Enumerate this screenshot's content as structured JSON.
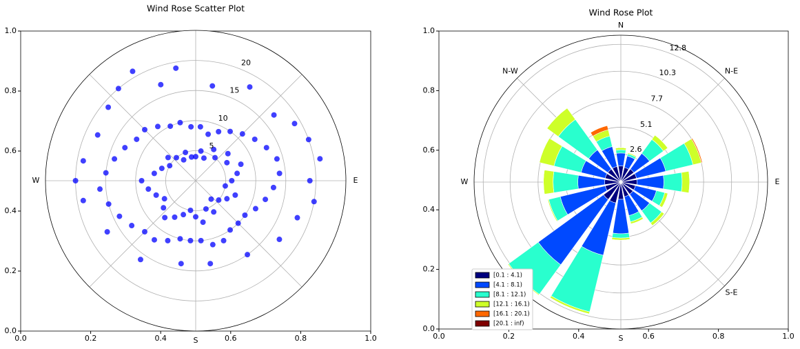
{
  "chart_data": [
    {
      "type": "polar_scatter",
      "title": "Wind Rose Scatter Plot",
      "color": "#0000ff",
      "directions": [
        null,
        null,
        "E",
        null,
        "S",
        null,
        "W",
        null
      ],
      "x": [
        5,
        15,
        25,
        35,
        45,
        55,
        65,
        75,
        85,
        95,
        105,
        115,
        125,
        135,
        145,
        155,
        165,
        175,
        185,
        195,
        205,
        215,
        225,
        235,
        245,
        255,
        265,
        275,
        285,
        295,
        305,
        315,
        325,
        335,
        345,
        355,
        0,
        10,
        20,
        30,
        40,
        50,
        60,
        70,
        80,
        90,
        100,
        110,
        120,
        130,
        140,
        150,
        160,
        170,
        180,
        190,
        200,
        210,
        220,
        230,
        240,
        250,
        260,
        270,
        280,
        290,
        300,
        310,
        320,
        330,
        340,
        350,
        340,
        350,
        10,
        30,
        50,
        60,
        70,
        80,
        90,
        100,
        110,
        125,
        145,
        170,
        190,
        215,
        240,
        260,
        270,
        280,
        295,
        310,
        320,
        330
      ],
      "values": [
        9,
        8,
        9,
        10,
        11,
        12,
        13,
        14,
        14,
        13,
        12,
        11,
        10,
        10,
        10,
        11,
        11,
        10,
        10,
        10,
        11,
        12,
        12,
        13,
        14,
        15,
        16,
        15,
        14,
        13,
        12,
        12,
        11,
        10,
        10,
        9,
        4,
        5,
        4,
        6,
        5,
        7,
        6,
        8,
        7,
        6,
        5,
        7,
        6,
        5,
        4,
        6,
        5,
        7,
        6,
        5,
        6,
        7,
        8,
        7,
        6,
        7,
        8,
        9,
        7,
        6,
        5,
        6,
        5,
        4,
        5,
        4,
        17,
        19,
        16,
        18,
        17,
        19,
        20,
        21,
        19,
        20,
        18,
        17,
        15,
        14,
        14,
        16,
        17,
        19,
        20,
        19,
        18,
        19,
        20,
        21
      ],
      "rlim": [
        0,
        25
      ],
      "rticks": [
        5,
        10,
        15,
        20
      ],
      "xlim": [
        0,
        1
      ],
      "ylim": [
        0,
        1
      ],
      "xticks": [
        {
          "value": 0,
          "label": "0.0"
        },
        0.2,
        0.4,
        0.6,
        0.8,
        {
          "value": 1,
          "label": "1.0"
        }
      ],
      "yticks": [
        {
          "value": 0,
          "label": "0.0"
        },
        0.2,
        0.4,
        0.6,
        0.8,
        {
          "value": 1,
          "label": "1.0"
        }
      ]
    },
    {
      "type": "wind_rose",
      "title": "Wind Rose Plot",
      "directions": [
        "N",
        "N-E",
        "E",
        "S-E",
        "S",
        null,
        "W",
        "N-W"
      ],
      "series": [
        {
          "name": "[0.1 : 4.1)",
          "color": "#00007f",
          "values": [
            1.5,
            1.4,
            1.5,
            1.5,
            1.5,
            1.4,
            1.4,
            1.4,
            1.6,
            2.0,
            2.0,
            1.5,
            1.5,
            1.5,
            1.5,
            1.5
          ]
        },
        {
          "name": "[4.1 : 8.1)",
          "color": "#0049ff",
          "values": [
            1.2,
            1.1,
            1.8,
            2.8,
            2.5,
            2.0,
            1.9,
            1.8,
            3.2,
            5.0,
            7.5,
            4.3,
            2.5,
            2.3,
            2.2,
            1.9
          ]
        },
        {
          "name": "[8.1 : 12.1)",
          "color": "#29ffce",
          "values": [
            0.3,
            0.2,
            1.6,
            2.6,
            1.7,
            0.8,
            1.4,
            0.6,
            0.4,
            5.4,
            3.4,
            1.1,
            2.3,
            2.6,
            3.5,
            1.0
          ]
        },
        {
          "name": "[12.1 : 16.1)",
          "color": "#ceff29",
          "values": [
            0.2,
            0.1,
            0.5,
            0.8,
            0.7,
            0.3,
            0.3,
            0.2,
            0.2,
            0.2,
            0.1,
            0.1,
            0.9,
            1.4,
            1.3,
            0.6
          ]
        },
        {
          "name": "[16.1 : 20.1)",
          "color": "#ff6800",
          "values": [
            0,
            0,
            0,
            0.1,
            0,
            0,
            0,
            0,
            0,
            0,
            0,
            0,
            0,
            0,
            0,
            0.4
          ]
        },
        {
          "name": "[20.1 : inf)",
          "color": "#7f0000",
          "values": [
            0,
            0,
            0,
            0,
            0,
            0,
            0,
            0,
            0,
            0,
            0,
            0,
            0,
            0,
            0,
            0
          ]
        }
      ],
      "rlim": [
        0,
        13.65
      ],
      "rticks": [
        2.6,
        5.1,
        7.7,
        10.3,
        12.8
      ],
      "xlim": [
        0,
        1
      ],
      "ylim": [
        0,
        1
      ],
      "xticks": [
        {
          "value": 0,
          "label": "0.0"
        },
        0.2,
        0.4,
        0.6,
        0.8,
        {
          "value": 1,
          "label": "1.0"
        }
      ],
      "yticks": [
        {
          "value": 0,
          "label": "0.0"
        },
        0.2,
        0.4,
        0.6,
        0.8,
        {
          "value": 1,
          "label": "1.0"
        }
      ]
    }
  ]
}
